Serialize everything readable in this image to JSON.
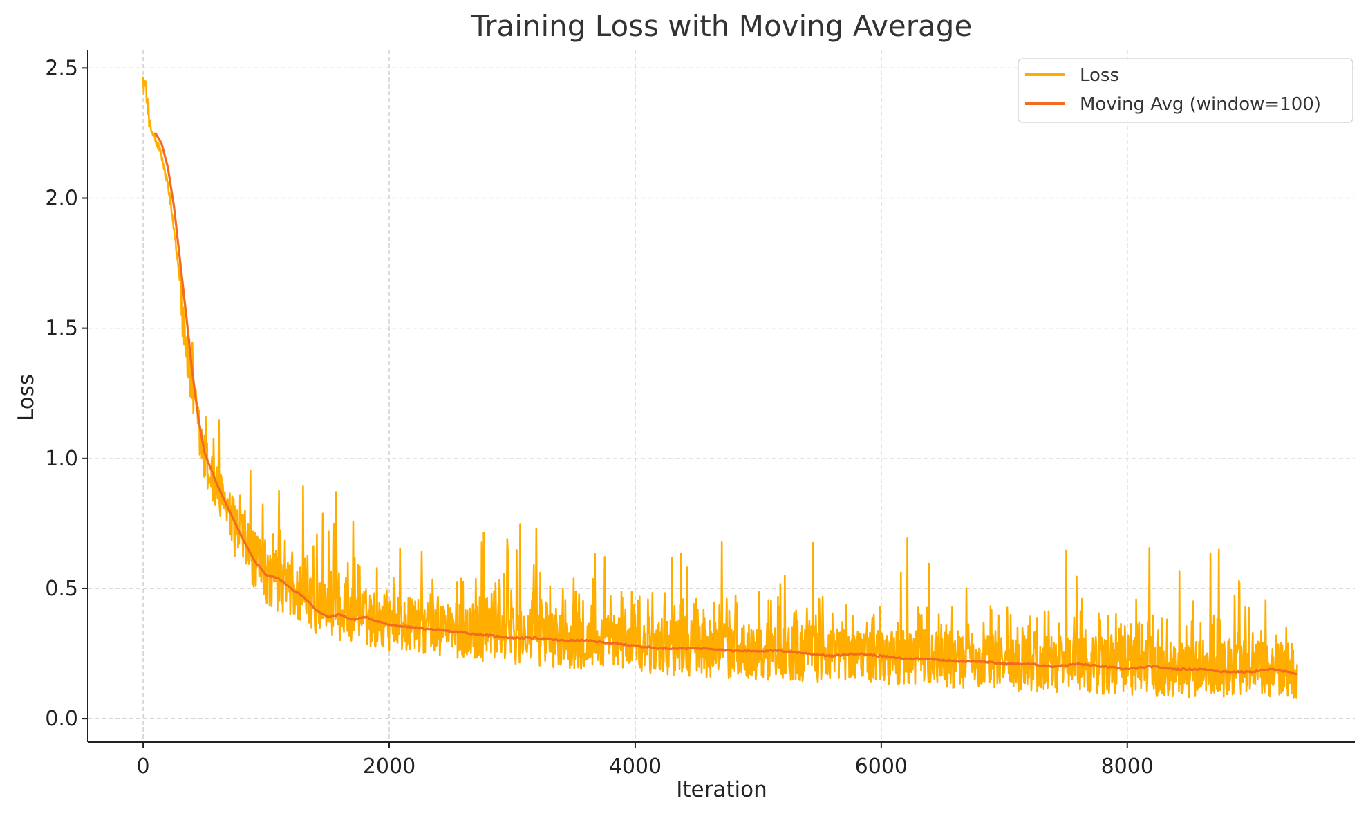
{
  "chart_data": {
    "type": "line",
    "title": "Training Loss with Moving Average",
    "xlabel": "Iteration",
    "ylabel": "Loss",
    "xlim": [
      -450,
      9850
    ],
    "ylim": [
      -0.09,
      2.57
    ],
    "xticks": [
      0,
      2000,
      4000,
      6000,
      8000
    ],
    "yticks": [
      0.0,
      0.5,
      1.0,
      1.5,
      2.0,
      2.5
    ],
    "xtick_labels": [
      "0",
      "2000",
      "4000",
      "6000",
      "8000"
    ],
    "ytick_labels": [
      "0.0",
      "0.5",
      "1.0",
      "1.5",
      "2.0",
      "2.5"
    ],
    "grid": true,
    "legend_position": "top-right",
    "series": [
      {
        "name": "Loss",
        "color": "#FFAE00",
        "x_range": [
          0,
          9380
        ],
        "points_approx": [
          [
            0,
            2.45
          ],
          [
            50,
            2.28
          ],
          [
            100,
            2.22
          ],
          [
            150,
            2.16
          ],
          [
            200,
            2.05
          ],
          [
            250,
            1.88
          ],
          [
            300,
            1.68
          ],
          [
            350,
            1.45
          ],
          [
            400,
            1.25
          ],
          [
            450,
            1.12
          ],
          [
            500,
            1.0
          ],
          [
            600,
            0.88
          ],
          [
            700,
            0.78
          ],
          [
            800,
            0.7
          ],
          [
            900,
            0.62
          ],
          [
            1000,
            0.56
          ],
          [
            1200,
            0.5
          ],
          [
            1400,
            0.45
          ],
          [
            1600,
            0.42
          ],
          [
            1800,
            0.4
          ],
          [
            2000,
            0.38
          ],
          [
            2500,
            0.35
          ],
          [
            3000,
            0.33
          ],
          [
            3500,
            0.31
          ],
          [
            4000,
            0.3
          ],
          [
            4500,
            0.28
          ],
          [
            5000,
            0.27
          ],
          [
            5500,
            0.26
          ],
          [
            6000,
            0.25
          ],
          [
            6500,
            0.24
          ],
          [
            7000,
            0.23
          ],
          [
            7500,
            0.22
          ],
          [
            8000,
            0.21
          ],
          [
            8500,
            0.2
          ],
          [
            9000,
            0.2
          ],
          [
            9380,
            0.19
          ]
        ],
        "noise_band_approx": {
          "upper_peak_max": 0.95,
          "lower_min": 0.03,
          "late_peaks": 0.47
        }
      },
      {
        "name": "Moving Avg (window=100)",
        "color": "#F26B21",
        "x_range": [
          99,
          9380
        ],
        "points_approx": [
          [
            99,
            2.25
          ],
          [
            150,
            2.21
          ],
          [
            200,
            2.12
          ],
          [
            250,
            1.97
          ],
          [
            300,
            1.76
          ],
          [
            350,
            1.55
          ],
          [
            400,
            1.33
          ],
          [
            450,
            1.15
          ],
          [
            500,
            1.02
          ],
          [
            600,
            0.9
          ],
          [
            700,
            0.8
          ],
          [
            800,
            0.7
          ],
          [
            900,
            0.61
          ],
          [
            1000,
            0.55
          ],
          [
            1100,
            0.54
          ],
          [
            1200,
            0.5
          ],
          [
            1300,
            0.47
          ],
          [
            1400,
            0.42
          ],
          [
            1500,
            0.39
          ],
          [
            1600,
            0.4
          ],
          [
            1700,
            0.38
          ],
          [
            1800,
            0.39
          ],
          [
            2000,
            0.36
          ],
          [
            2200,
            0.35
          ],
          [
            2400,
            0.34
          ],
          [
            2600,
            0.33
          ],
          [
            2800,
            0.32
          ],
          [
            3000,
            0.31
          ],
          [
            3200,
            0.31
          ],
          [
            3400,
            0.3
          ],
          [
            3600,
            0.3
          ],
          [
            3800,
            0.29
          ],
          [
            4000,
            0.28
          ],
          [
            4200,
            0.27
          ],
          [
            4400,
            0.27
          ],
          [
            4600,
            0.27
          ],
          [
            4800,
            0.26
          ],
          [
            5000,
            0.26
          ],
          [
            5200,
            0.26
          ],
          [
            5400,
            0.25
          ],
          [
            5600,
            0.24
          ],
          [
            5800,
            0.25
          ],
          [
            6000,
            0.24
          ],
          [
            6200,
            0.23
          ],
          [
            6400,
            0.23
          ],
          [
            6600,
            0.22
          ],
          [
            6800,
            0.22
          ],
          [
            7000,
            0.21
          ],
          [
            7200,
            0.21
          ],
          [
            7400,
            0.2
          ],
          [
            7600,
            0.21
          ],
          [
            7800,
            0.2
          ],
          [
            8000,
            0.19
          ],
          [
            8200,
            0.2
          ],
          [
            8400,
            0.19
          ],
          [
            8600,
            0.19
          ],
          [
            8800,
            0.18
          ],
          [
            9000,
            0.18
          ],
          [
            9200,
            0.19
          ],
          [
            9380,
            0.17
          ]
        ]
      }
    ],
    "colors": {
      "loss": "#FFAE00",
      "moving_avg": "#F26B21",
      "grid": "#c8c8c8",
      "axis": "#222222",
      "title": "#333333"
    }
  }
}
